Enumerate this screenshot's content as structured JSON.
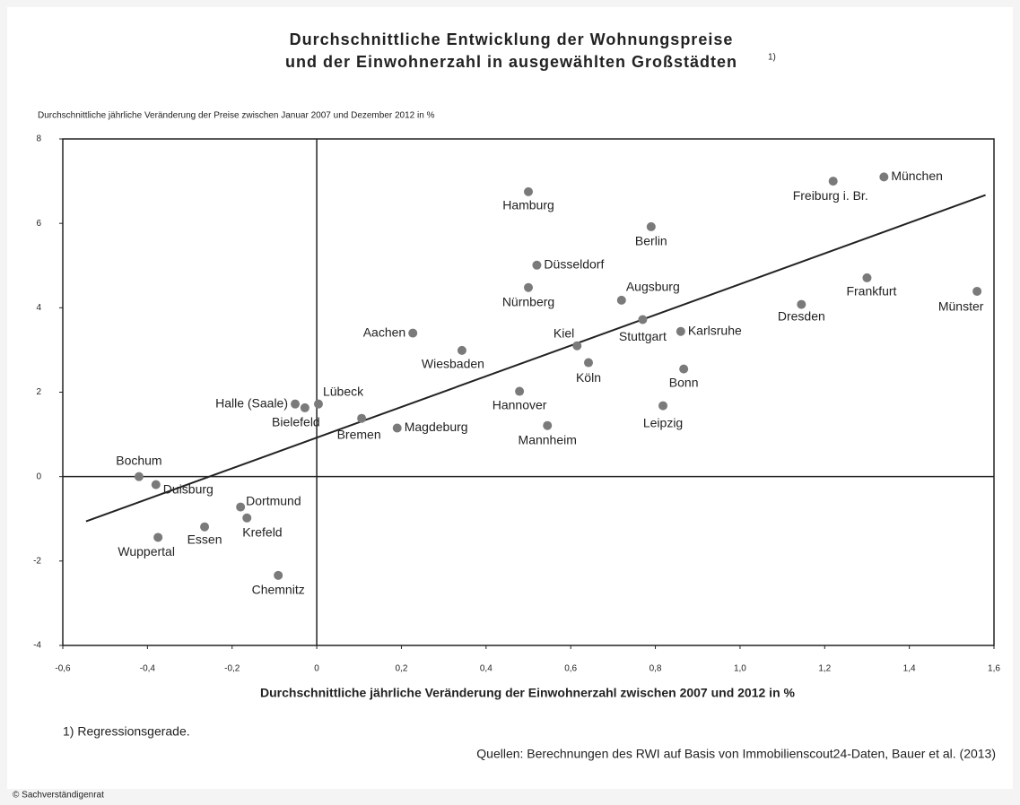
{
  "chart_data": {
    "type": "scatter",
    "title": [
      "Durchschnittliche Entwicklung der Wohnungspreise",
      "und der Einwohnerzahl in ausgewählten Großstädten"
    ],
    "title_note": "1)",
    "y_label": "Durchschnittliche jährliche Veränderung der Preise zwischen Januar 2007 und Dezember 2012 in %",
    "x_label": "Durchschnittliche jährliche Veränderung der Einwohnerzahl zwischen 2007 und 2012 in %",
    "footnote": "1) Regressionsgerade.",
    "source": "Quellen: Berechnungen des RWI auf Basis von Immobilienscout24-Daten, Bauer et al. (2013)",
    "copyright": "© Sachverständigenrat",
    "color": "#7a7a7a",
    "labels": [
      "München",
      "Freiburg i. Br.",
      "Hamburg",
      "Berlin",
      "Düsseldorf",
      "Nürnberg",
      "Augsburg",
      "Frankfurt",
      "Münster",
      "Dresden",
      "Stuttgart",
      "Karlsruhe",
      "Aachen",
      "Kiel",
      "Wiesbaden",
      "Köln",
      "Bonn",
      "Hannover",
      "Leipzig",
      "Halle (Saale)",
      "Bielefeld",
      "Lübeck",
      "Bremen",
      "Magdeburg",
      "Mannheim",
      "Bochum",
      "Duisburg",
      "Dortmund",
      "Krefeld",
      "Essen",
      "Wuppertal",
      "Chemnitz"
    ],
    "x": [
      1.34,
      1.22,
      0.5,
      0.79,
      0.52,
      0.5,
      0.72,
      1.3,
      1.56,
      1.145,
      0.77,
      0.86,
      0.227,
      0.615,
      0.343,
      0.642,
      0.867,
      0.479,
      0.818,
      -0.051,
      -0.028,
      0.004,
      0.106,
      0.19,
      0.545,
      -0.42,
      -0.38,
      -0.18,
      -0.165,
      -0.265,
      -0.375,
      -0.091
    ],
    "y": [
      7.1,
      7.0,
      6.75,
      5.92,
      5.01,
      4.48,
      4.18,
      4.71,
      4.39,
      4.08,
      3.72,
      3.44,
      3.4,
      3.1,
      2.99,
      2.7,
      2.55,
      2.02,
      1.68,
      1.72,
      1.63,
      1.72,
      1.38,
      1.15,
      1.21,
      0.0,
      -0.19,
      -0.72,
      -0.98,
      -1.19,
      -1.44,
      -2.34
    ],
    "regression": {
      "x": [
        -0.545,
        1.58
      ],
      "y": [
        -1.06,
        6.67
      ]
    },
    "xlim": [
      -0.6,
      1.6
    ],
    "ylim": [
      -4,
      8
    ],
    "xticks": [
      {
        "value": -0.6,
        "label": "-0,6"
      },
      {
        "value": -0.4,
        "label": "-0,4"
      },
      {
        "value": -0.2,
        "label": "-0,2"
      },
      0,
      {
        "value": 0.2,
        "label": "0,2"
      },
      {
        "value": 0.4,
        "label": "0,4"
      },
      {
        "value": 0.6,
        "label": "0,6"
      },
      {
        "value": 0.8,
        "label": "0,8"
      },
      {
        "value": 1.0,
        "label": "1,0"
      },
      {
        "value": 1.2,
        "label": "1,2"
      },
      {
        "value": 1.4,
        "label": "1,4"
      },
      {
        "value": 1.6,
        "label": "1,6"
      }
    ],
    "yticks": [
      -4,
      -2,
      0,
      2,
      4,
      6,
      8
    ]
  }
}
